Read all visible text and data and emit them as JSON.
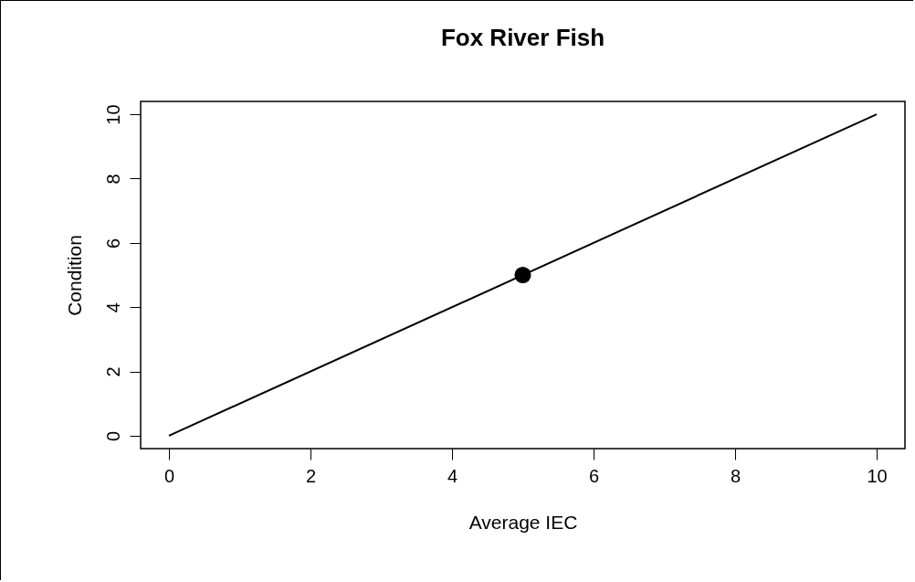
{
  "chart_data": {
    "type": "line",
    "title": "Fox River Fish",
    "xlabel": "Average IEC",
    "ylabel": "Condition",
    "xlim": [
      -0.4,
      10.4
    ],
    "ylim": [
      -0.4,
      10.4
    ],
    "xticks": [
      0,
      2,
      4,
      6,
      8,
      10
    ],
    "yticks": [
      0,
      2,
      4,
      6,
      8,
      10
    ],
    "grid": false,
    "series": [
      {
        "type": "line",
        "color": "#000000",
        "x": [
          0,
          10
        ],
        "values": [
          0,
          10
        ],
        "line_style": "solid",
        "marker": "none"
      },
      {
        "type": "scatter",
        "color": "#000000",
        "x": [
          5
        ],
        "values": [
          5
        ],
        "marker": "circle"
      }
    ]
  }
}
